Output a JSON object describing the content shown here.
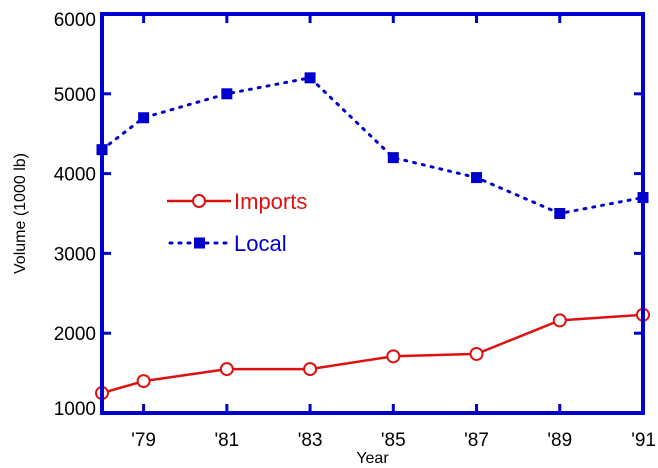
{
  "chart_data": {
    "type": "line",
    "xlabel": "Year",
    "ylabel": "Volume (1000 lb)",
    "xlim": [
      1978,
      1991
    ],
    "ylim": [
      1000,
      6000
    ],
    "x_ticks": [
      1979,
      1981,
      1983,
      1985,
      1987,
      1989,
      1991
    ],
    "x_tick_labels": [
      "'79",
      "'81",
      "'83",
      "'85",
      "'87",
      "'89",
      "'91"
    ],
    "y_ticks": [
      1000,
      2000,
      3000,
      4000,
      5000,
      6000
    ],
    "y_tick_labels": [
      "1000",
      "2000",
      "3000",
      "4000",
      "5000",
      "6000"
    ],
    "grid": false,
    "legend_position": "left-middle",
    "frame_color": "#0000cc",
    "series": [
      {
        "name": "Imports",
        "color": "#dd1111",
        "line_style": "solid",
        "marker": "open-circle",
        "x": [
          1978,
          1979,
          1981,
          1983,
          1985,
          1987,
          1989,
          1991
        ],
        "y": [
          1250,
          1400,
          1550,
          1550,
          1710,
          1740,
          2160,
          2230
        ]
      },
      {
        "name": "Local",
        "color": "#0000cc",
        "line_style": "dotted",
        "marker": "filled-square",
        "x": [
          1978,
          1979,
          1981,
          1983,
          1985,
          1987,
          1989,
          1991
        ],
        "y": [
          4300,
          4700,
          5000,
          5200,
          4200,
          3950,
          3500,
          3700
        ]
      }
    ]
  }
}
